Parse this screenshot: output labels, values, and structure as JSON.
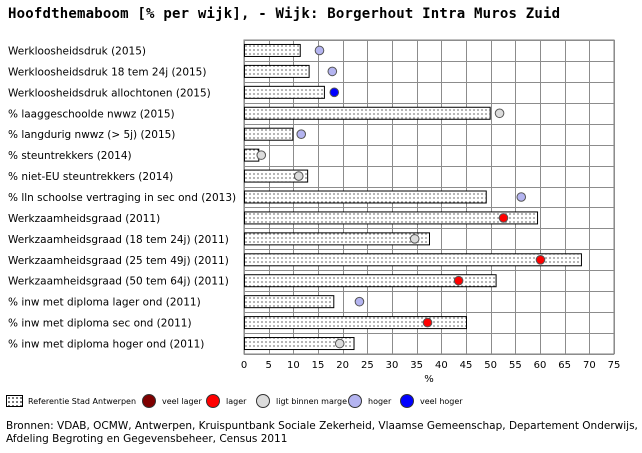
{
  "title": "Hoofdthemaboom [% per wijk], - Wijk: Borgerhout Intra Muros Zuid",
  "chart_data": {
    "type": "bar",
    "xlabel": "%",
    "xlim": [
      0,
      75
    ],
    "xticks": [
      0,
      5,
      10,
      15,
      20,
      25,
      30,
      35,
      40,
      45,
      50,
      55,
      60,
      65,
      70,
      75
    ],
    "grid": true,
    "categories": [
      "Werkloosheidsdruk (2015)",
      "Werkloosheidsdruk 18 tem 24j (2015)",
      "Werkloosheidsdruk allochtonen (2015)",
      "% laaggeschoolde nwwz (2015)",
      "% langdurig nwwz (> 5j) (2015)",
      "% steuntrekkers (2014)",
      "% niet-EU steuntrekkers (2014)",
      "% lln schoolse vertraging in sec ond (2013)",
      "Werkzaamheidsgraad (2011)",
      "Werkzaamheidsgraad (18 tem 24j) (2011)",
      "Werkzaamheidsgraad (25 tem 49j) (2011)",
      "Werkzaamheidsgraad (50 tem 64j) (2011)",
      "% inw met diploma lager ond (2011)",
      "% inw met diploma sec ond (2011)",
      "% inw met diploma hoger ond (2011)"
    ],
    "series": [
      {
        "name": "Referentie Stad Antwerpen",
        "type": "bar",
        "values": [
          11.3,
          13.1,
          16.2,
          49.8,
          9.8,
          2.9,
          12.8,
          49.0,
          59.4,
          37.5,
          68.3,
          51.0,
          18.1,
          45.0,
          22.2
        ]
      },
      {
        "name": "Wijk",
        "type": "marker",
        "values": [
          15.3,
          17.9,
          18.3,
          51.8,
          11.6,
          3.5,
          11.1,
          56.2,
          52.6,
          34.6,
          60.1,
          43.5,
          23.4,
          37.2,
          19.4
        ],
        "classes": [
          "hoger",
          "hoger",
          "veel hoger",
          "ligt binnen marge",
          "hoger",
          "ligt binnen marge",
          "ligt binnen marge",
          "hoger",
          "lager",
          "ligt binnen marge",
          "lager",
          "lager",
          "hoger",
          "lager",
          "ligt binnen marge"
        ]
      }
    ],
    "legend_position": "bottom"
  },
  "class_colors": {
    "veel lager": "#7f0000",
    "lager": "#ff0000",
    "ligt binnen marge": "#dcdcdc",
    "hoger": "#b4b4f0",
    "veel hoger": "#0000ff"
  },
  "legend": {
    "reference_label": "Referentie  Stad Antwerpen",
    "items": [
      {
        "key": "veel lager",
        "label": "veel lager"
      },
      {
        "key": "lager",
        "label": "lager"
      },
      {
        "key": "ligt binnen marge",
        "label": "ligt binnen marge"
      },
      {
        "key": "hoger",
        "label": "hoger"
      },
      {
        "key": "veel hoger",
        "label": "veel hoger"
      }
    ]
  },
  "source": "Bronnen: VDAB, OCMW, Antwerpen, Kruispuntbank Sociale Zekerheid, Vlaamse Gemeenschap, Departement Onderwijs, Afdeling Begroting en Gegevensbeheer, Census 2011"
}
